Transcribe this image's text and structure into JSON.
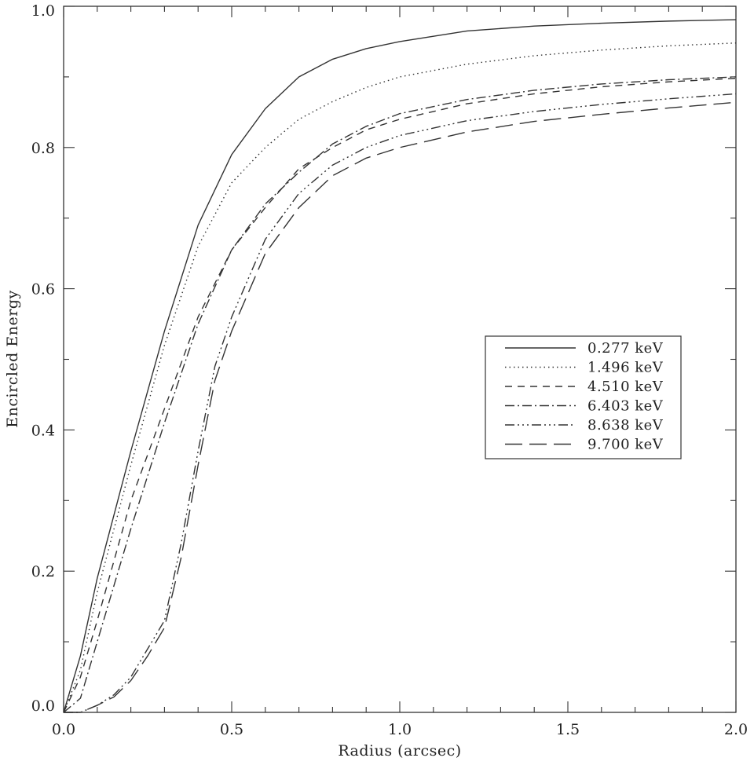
{
  "chart_data": {
    "type": "line",
    "title": "",
    "xlabel": "Radius (arcsec)",
    "ylabel": "Encircled Energy",
    "xlim": [
      0.0,
      2.0
    ],
    "ylim": [
      0.0,
      1.0
    ],
    "x_ticks": [
      "0.0",
      "0.5",
      "1.0",
      "1.5",
      "2.0"
    ],
    "y_ticks": [
      "0.0",
      "0.2",
      "0.4",
      "0.6",
      "0.8",
      "1.0"
    ],
    "grid": false,
    "legend_position": "right-middle",
    "line_color": "#333333",
    "series": [
      {
        "name": "0.277  keV",
        "dash": "solid",
        "x": [
          0.0,
          0.05,
          0.1,
          0.2,
          0.3,
          0.4,
          0.5,
          0.6,
          0.7,
          0.8,
          0.9,
          1.0,
          1.2,
          1.4,
          1.6,
          1.8,
          2.0
        ],
        "y": [
          0.0,
          0.08,
          0.19,
          0.37,
          0.54,
          0.69,
          0.79,
          0.855,
          0.9,
          0.925,
          0.94,
          0.95,
          0.965,
          0.972,
          0.976,
          0.979,
          0.981
        ]
      },
      {
        "name": "1.496  keV",
        "dash": "dotted",
        "x": [
          0.0,
          0.05,
          0.1,
          0.2,
          0.3,
          0.4,
          0.5,
          0.6,
          0.7,
          0.8,
          0.9,
          1.0,
          1.2,
          1.4,
          1.6,
          1.8,
          2.0
        ],
        "y": [
          0.0,
          0.06,
          0.17,
          0.35,
          0.52,
          0.66,
          0.75,
          0.8,
          0.84,
          0.865,
          0.885,
          0.9,
          0.918,
          0.93,
          0.938,
          0.944,
          0.948
        ]
      },
      {
        "name": "4.510  keV",
        "dash": "dashed",
        "x": [
          0.0,
          0.05,
          0.1,
          0.2,
          0.3,
          0.4,
          0.5,
          0.6,
          0.7,
          0.8,
          0.9,
          1.0,
          1.2,
          1.4,
          1.6,
          1.8,
          2.0
        ],
        "y": [
          0.0,
          0.05,
          0.13,
          0.3,
          0.43,
          0.56,
          0.655,
          0.715,
          0.77,
          0.8,
          0.825,
          0.84,
          0.862,
          0.876,
          0.886,
          0.893,
          0.898
        ]
      },
      {
        "name": "6.403  keV",
        "dash": "dash-dot",
        "x": [
          0.0,
          0.05,
          0.1,
          0.2,
          0.3,
          0.4,
          0.5,
          0.6,
          0.7,
          0.8,
          0.9,
          1.0,
          1.2,
          1.4,
          1.6,
          1.8,
          2.0
        ],
        "y": [
          0.0,
          0.02,
          0.1,
          0.26,
          0.41,
          0.55,
          0.655,
          0.72,
          0.765,
          0.805,
          0.83,
          0.848,
          0.868,
          0.881,
          0.89,
          0.896,
          0.9
        ]
      },
      {
        "name": "8.638  keV",
        "dash": "dash-dot-dot-dot",
        "x": [
          0.0,
          0.05,
          0.1,
          0.15,
          0.2,
          0.25,
          0.3,
          0.35,
          0.4,
          0.45,
          0.5,
          0.6,
          0.7,
          0.8,
          0.9,
          1.0,
          1.2,
          1.4,
          1.6,
          1.8,
          2.0
        ],
        "y": [
          0.0,
          0.0,
          0.01,
          0.025,
          0.05,
          0.09,
          0.13,
          0.24,
          0.37,
          0.49,
          0.56,
          0.67,
          0.735,
          0.775,
          0.8,
          0.817,
          0.838,
          0.851,
          0.861,
          0.869,
          0.876
        ]
      },
      {
        "name": "9.700  keV",
        "dash": "long-dashed",
        "x": [
          0.0,
          0.05,
          0.1,
          0.15,
          0.2,
          0.25,
          0.3,
          0.35,
          0.4,
          0.45,
          0.5,
          0.6,
          0.7,
          0.8,
          0.9,
          1.0,
          1.2,
          1.4,
          1.6,
          1.8,
          2.0
        ],
        "y": [
          0.0,
          0.0,
          0.01,
          0.022,
          0.045,
          0.08,
          0.12,
          0.22,
          0.35,
          0.47,
          0.54,
          0.65,
          0.715,
          0.76,
          0.785,
          0.8,
          0.822,
          0.837,
          0.847,
          0.856,
          0.864
        ]
      }
    ]
  }
}
